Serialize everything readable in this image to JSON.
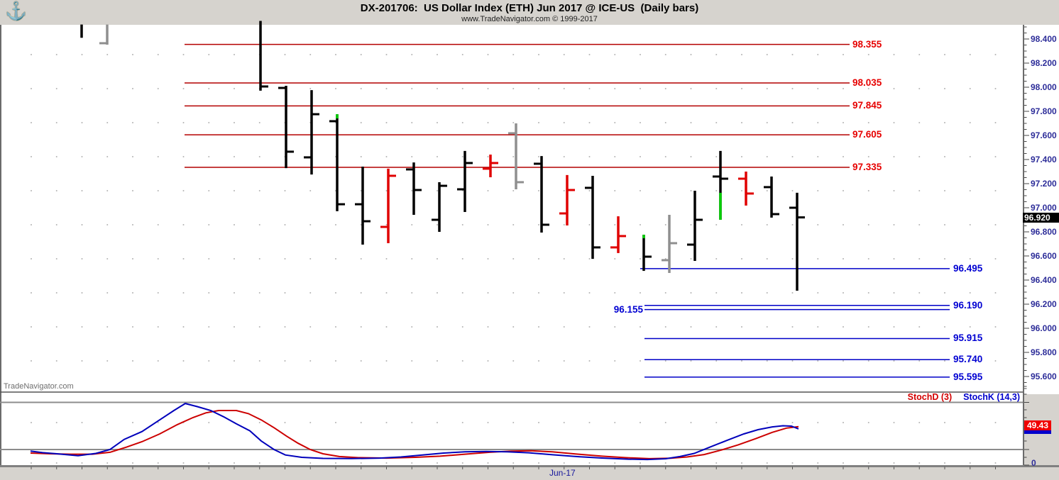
{
  "header": {
    "logo_icon": "sextant-logo-icon",
    "title": "DX-201706:  US Dollar Index (ETH) Jun 2017 @ ICE-US  (Daily bars)",
    "subtitle": "www.TradeNavigator.com © 1999-2017"
  },
  "watermark": "TradeNavigator.com",
  "price_axis": {
    "tick_labels": [
      "98.400",
      "98.200",
      "98.000",
      "97.800",
      "97.600",
      "97.400",
      "97.200",
      "97.000",
      "96.800",
      "96.600",
      "96.400",
      "96.200",
      "96.000",
      "95.800",
      "95.600"
    ],
    "current_price_badge": "96.920"
  },
  "date_axis": {
    "visible_label": "Jun-17"
  },
  "indicator_panel": {
    "series_labels": [
      {
        "text": "StochD (3)",
        "color": "#d40000"
      },
      {
        "text": "StochK (14,3)",
        "color": "#0000cc"
      }
    ],
    "last_value_badge": "49.43",
    "axis_zero_label": "0"
  },
  "colors": {
    "bar_black": "#000000",
    "bar_red": "#e00000",
    "bar_gray": "#8f8f8f",
    "bar_green": "#00cf00",
    "resistance_line": "#b40000",
    "support_line": "#0000c8",
    "stoch_k": "#0000bb",
    "stoch_d": "#cc0000",
    "grid": "#8c8c8c",
    "dots": "#b3b3b3",
    "axis_text": "#2d2d99"
  },
  "chart_data": {
    "type": "ohlc-bars",
    "title": "DX-201706 US Dollar Index (ETH) Jun 2017, daily bars",
    "price_scale": {
      "top_label": 98.4,
      "bottom_label": 95.6,
      "tick_step": 0.2
    },
    "current_price": 96.92,
    "resistance_levels": [
      {
        "price": 98.355,
        "label": "98.355"
      },
      {
        "price": 98.035,
        "label": "98.035"
      },
      {
        "price": 97.845,
        "label": "97.845"
      },
      {
        "price": 97.605,
        "label": "97.605"
      },
      {
        "price": 97.335,
        "label": "97.335"
      }
    ],
    "support_levels": [
      {
        "price": 96.495,
        "label": "96.495",
        "label_side": "right"
      },
      {
        "price": 96.19,
        "label": "96.190",
        "label_side": "right"
      },
      {
        "price": 96.155,
        "label": "96.155",
        "label_side": "left"
      },
      {
        "price": 95.915,
        "label": "95.915",
        "label_side": "right"
      },
      {
        "price": 95.74,
        "label": "95.740",
        "label_side": "right"
      },
      {
        "price": 95.595,
        "label": "95.595",
        "label_side": "right"
      }
    ],
    "bars": [
      {
        "slot": 0,
        "h": 98.52,
        "l": 98.41,
        "o": null,
        "c": null,
        "color": "black"
      },
      {
        "slot": 1,
        "h": 98.52,
        "l": 98.353,
        "o": 98.365,
        "c": null,
        "color": "gray"
      },
      {
        "slot": 7,
        "h": 98.55,
        "l": 97.971,
        "o": null,
        "c": 98.006,
        "color": "black"
      },
      {
        "slot": 8,
        "h": 98.012,
        "l": 97.329,
        "o": 97.994,
        "c": 97.465,
        "color": "black"
      },
      {
        "slot": 9,
        "h": 97.976,
        "l": 97.276,
        "o": 97.418,
        "c": 97.776,
        "color": "black"
      },
      {
        "slot": 10,
        "h": 97.776,
        "l": 96.971,
        "o": 97.718,
        "c": 97.029,
        "color": "black",
        "green": [
          97.776,
          97.741
        ]
      },
      {
        "slot": 11,
        "h": 97.341,
        "l": 96.694,
        "o": 97.029,
        "c": 96.888,
        "color": "black"
      },
      {
        "slot": 12,
        "h": 97.324,
        "l": 96.706,
        "o": 96.841,
        "c": 97.265,
        "color": "red"
      },
      {
        "slot": 13,
        "h": 97.376,
        "l": 96.941,
        "o": 97.318,
        "c": 97.147,
        "color": "black"
      },
      {
        "slot": 14,
        "h": 97.212,
        "l": 96.8,
        "o": 96.9,
        "c": 97.182,
        "color": "black"
      },
      {
        "slot": 15,
        "h": 97.471,
        "l": 96.965,
        "o": 97.153,
        "c": 97.371,
        "color": "black"
      },
      {
        "slot": 16,
        "h": 97.441,
        "l": 97.253,
        "o": 97.324,
        "c": 97.371,
        "color": "red"
      },
      {
        "slot": 17,
        "h": 97.7,
        "l": 97.153,
        "o": 97.618,
        "c": 97.212,
        "color": "gray"
      },
      {
        "slot": 18,
        "h": 97.429,
        "l": 96.794,
        "o": 97.365,
        "c": 96.859,
        "color": "black"
      },
      {
        "slot": 19,
        "h": 97.271,
        "l": 96.853,
        "o": 96.953,
        "c": 97.147,
        "color": "red"
      },
      {
        "slot": 20,
        "h": 97.265,
        "l": 96.576,
        "o": 97.165,
        "c": 96.671,
        "color": "black"
      },
      {
        "slot": 21,
        "h": 96.929,
        "l": 96.624,
        "o": 96.671,
        "c": 96.765,
        "color": "red"
      },
      {
        "slot": 22,
        "h": 96.776,
        "l": 96.476,
        "o": null,
        "c": 96.594,
        "color": "black",
        "green": [
          96.776,
          96.747
        ]
      },
      {
        "slot": 23,
        "h": 96.941,
        "l": 96.459,
        "o": 96.565,
        "c": 96.706,
        "color": "gray"
      },
      {
        "slot": 24,
        "h": 97.141,
        "l": 96.559,
        "o": 96.694,
        "c": 96.9,
        "color": "black"
      },
      {
        "slot": 25,
        "h": 97.471,
        "l": 96.9,
        "o": 97.259,
        "c": 97.241,
        "color": "black",
        "green": [
          97.124,
          96.9
        ]
      },
      {
        "slot": 26,
        "h": 97.3,
        "l": 97.018,
        "o": 97.241,
        "c": 97.118,
        "color": "red"
      },
      {
        "slot": 27,
        "h": 97.259,
        "l": 96.918,
        "o": 97.171,
        "c": 96.947,
        "color": "black"
      },
      {
        "slot": 28,
        "h": 97.124,
        "l": 96.312,
        "o": 97.0,
        "c": 96.92,
        "color": "black"
      }
    ],
    "stochastics": {
      "gridlines": [
        80,
        20
      ],
      "d_last": 49.43,
      "k_points": [
        [
          43,
          18
        ],
        [
          60,
          16
        ],
        [
          80,
          14.5
        ],
        [
          110,
          12
        ],
        [
          135,
          15
        ],
        [
          155,
          20
        ],
        [
          175,
          33
        ],
        [
          200,
          43
        ],
        [
          225,
          58
        ],
        [
          245,
          70
        ],
        [
          261,
          79
        ],
        [
          278,
          75
        ],
        [
          297,
          70
        ],
        [
          315,
          62
        ],
        [
          333,
          53
        ],
        [
          352,
          44
        ],
        [
          368,
          31
        ],
        [
          386,
          20
        ],
        [
          402,
          13
        ],
        [
          425,
          10
        ],
        [
          455,
          8.6
        ],
        [
          495,
          8.4
        ],
        [
          535,
          9
        ],
        [
          565,
          10.5
        ],
        [
          595,
          13
        ],
        [
          625,
          15.5
        ],
        [
          655,
          17
        ],
        [
          685,
          17.5
        ],
        [
          715,
          17
        ],
        [
          745,
          15.8
        ],
        [
          780,
          13.2
        ],
        [
          815,
          10.8
        ],
        [
          850,
          9
        ],
        [
          885,
          7.6
        ],
        [
          912,
          7.2
        ],
        [
          938,
          8.2
        ],
        [
          958,
          11
        ],
        [
          978,
          15
        ],
        [
          1000,
          23
        ],
        [
          1025,
          32
        ],
        [
          1048,
          40
        ],
        [
          1068,
          45.5
        ],
        [
          1088,
          49
        ],
        [
          1103,
          50.5
        ],
        [
          1115,
          50
        ],
        [
          1125,
          46.5
        ]
      ],
      "d_points": [
        [
          43,
          15.5
        ],
        [
          70,
          14.5
        ],
        [
          100,
          14
        ],
        [
          130,
          14
        ],
        [
          155,
          16.5
        ],
        [
          178,
          23
        ],
        [
          200,
          30
        ],
        [
          225,
          40
        ],
        [
          250,
          52
        ],
        [
          272,
          61
        ],
        [
          290,
          67
        ],
        [
          308,
          70
        ],
        [
          333,
          70
        ],
        [
          350,
          66
        ],
        [
          368,
          58
        ],
        [
          386,
          48
        ],
        [
          404,
          37
        ],
        [
          420,
          28
        ],
        [
          437,
          20
        ],
        [
          455,
          14.5
        ],
        [
          478,
          11
        ],
        [
          505,
          9.5
        ],
        [
          545,
          9
        ],
        [
          585,
          10
        ],
        [
          620,
          11.5
        ],
        [
          655,
          14
        ],
        [
          690,
          16.5
        ],
        [
          720,
          18
        ],
        [
          748,
          18.4
        ],
        [
          778,
          17
        ],
        [
          812,
          14.2
        ],
        [
          848,
          11.5
        ],
        [
          882,
          9.5
        ],
        [
          915,
          8.3
        ],
        [
          945,
          8.9
        ],
        [
          968,
          10.5
        ],
        [
          992,
          13.5
        ],
        [
          1015,
          19
        ],
        [
          1040,
          26
        ],
        [
          1065,
          34
        ],
        [
          1088,
          42
        ],
        [
          1108,
          47.5
        ],
        [
          1125,
          49.4
        ]
      ]
    }
  }
}
